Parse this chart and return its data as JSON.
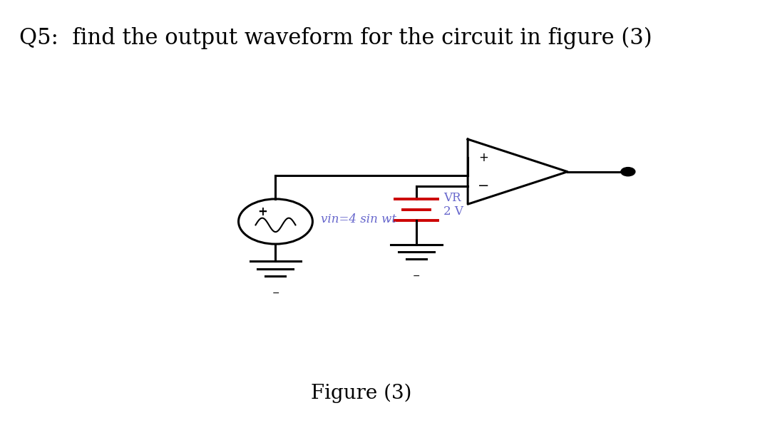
{
  "title": "Q5:  find the output waveform for the circuit in figure (3)",
  "title_fontsize": 22,
  "figure_caption": "Figure (3)",
  "caption_fontsize": 20,
  "bg_color": "#ffffff",
  "circuit_color": "#000000",
  "battery_color": "#cc0000",
  "label_color": "#6666cc",
  "vin_label": "vin=4 sin wt",
  "vr_label": "VR",
  "v2_label": "2 V"
}
